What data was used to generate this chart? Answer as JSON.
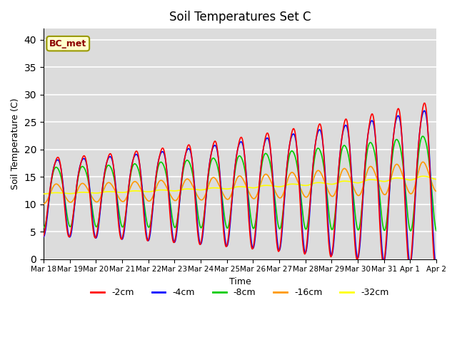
{
  "title": "Soil Temperatures Set C",
  "xlabel": "Time",
  "ylabel": "Soil Temperature (C)",
  "ylim": [
    0,
    42
  ],
  "yticks": [
    0,
    5,
    10,
    15,
    20,
    25,
    30,
    35,
    40
  ],
  "background_color": "#dcdcdc",
  "grid_color": "white",
  "annotation_text": "BC_met",
  "annotation_box_color": "#ffffcc",
  "annotation_box_edge": "#999900",
  "colors": {
    "-2cm": "#ff0000",
    "-4cm": "#0000ff",
    "-8cm": "#00cc00",
    "-16cm": "#ff9900",
    "-32cm": "#ffff00"
  },
  "linewidth": 1.2,
  "x_tick_labels": [
    "Mar 18",
    "Mar 19",
    "Mar 20",
    "Mar 21",
    "Mar 22",
    "Mar 23",
    "Mar 24",
    "Mar 25",
    "Mar 26",
    "Mar 27",
    "Mar 28",
    "Mar 29",
    "Mar 30",
    "Mar 31",
    "Apr 1",
    "Apr 2"
  ],
  "x_tick_positions": [
    0,
    1,
    2,
    3,
    4,
    5,
    6,
    7,
    8,
    9,
    10,
    11,
    12,
    13,
    14,
    15
  ],
  "n_days": 15,
  "samples_per_day": 48,
  "base_temp": 12.0,
  "trend_end": 15.0,
  "depth_params": {
    "-2cm": {
      "amp_base": 7.0,
      "amp_end": 15.0,
      "phase": 0.0,
      "lag": 0.0,
      "smooth": 1
    },
    "-4cm": {
      "amp_base": 7.0,
      "amp_end": 14.5,
      "phase": 0.0,
      "lag": 0.05,
      "smooth": 2
    },
    "-8cm": {
      "amp_base": 5.5,
      "amp_end": 9.0,
      "phase": 0.0,
      "lag": 0.12,
      "smooth": 3
    },
    "-16cm": {
      "amp_base": 2.0,
      "amp_end": 3.5,
      "phase": 0.0,
      "lag": 0.25,
      "smooth": 8
    },
    "-32cm": {
      "amp_base": 0.5,
      "amp_end": 1.5,
      "phase": 0.0,
      "lag": 0.5,
      "smooth": 20
    }
  }
}
